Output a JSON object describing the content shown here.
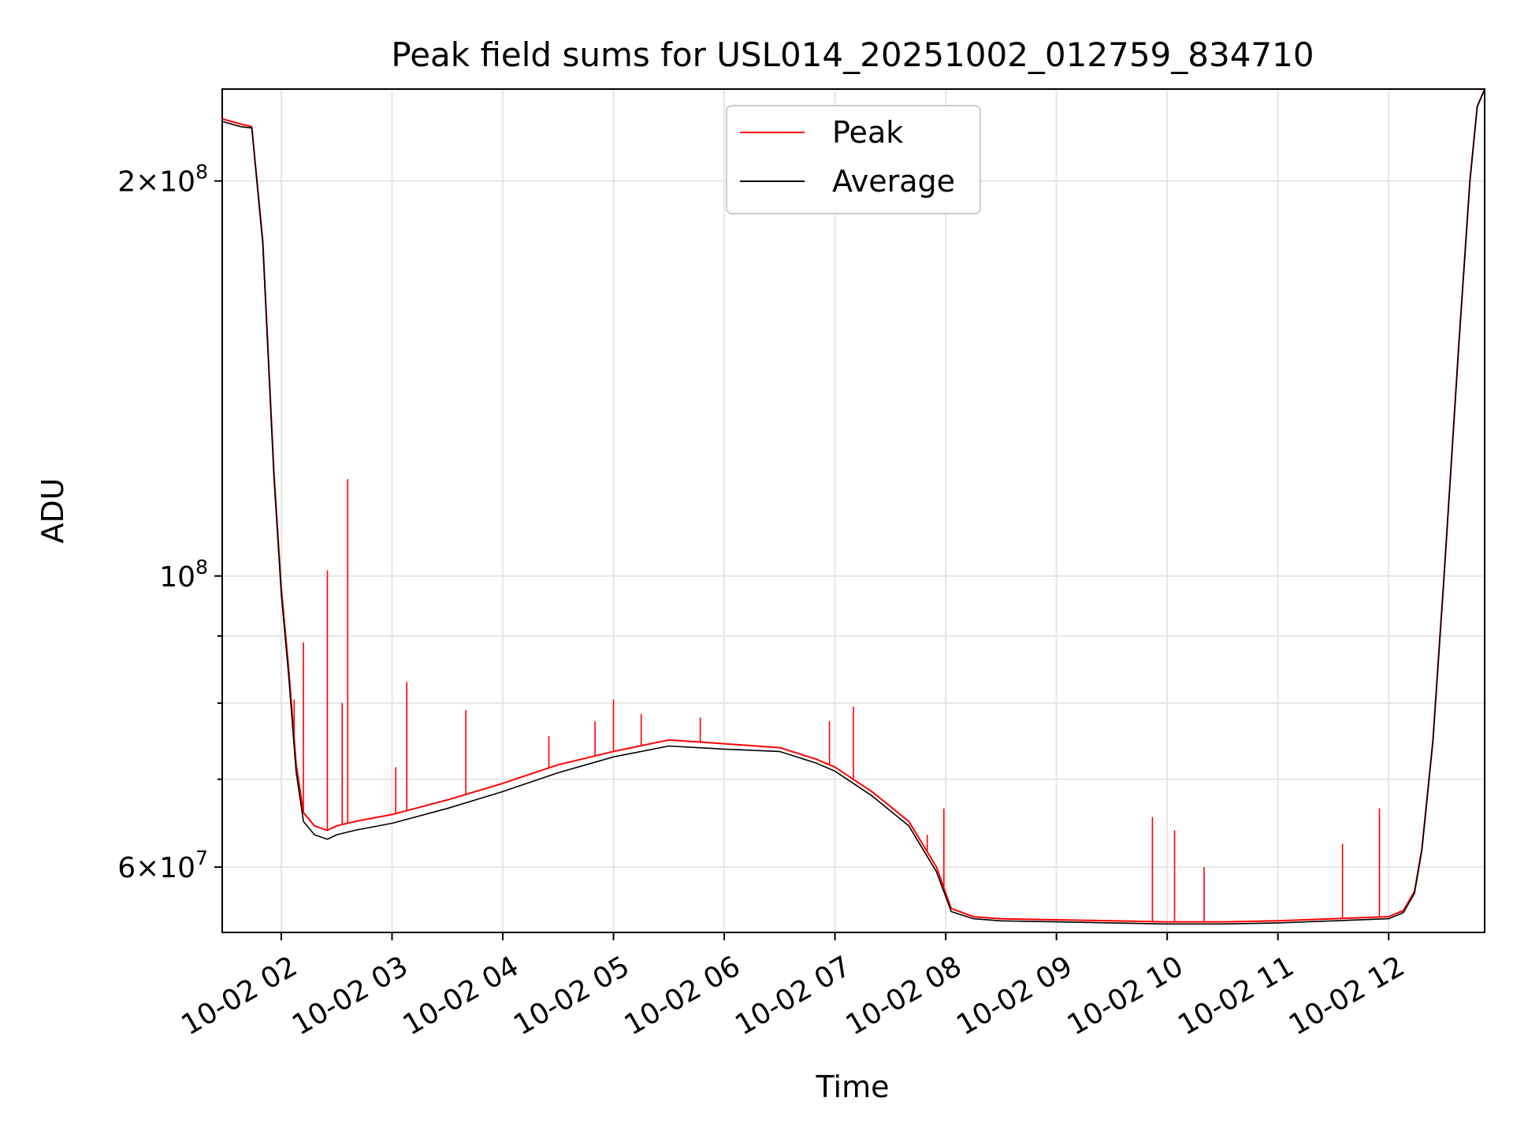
{
  "chart_data": {
    "type": "line",
    "title": "Peak field sums for USL014_20251002_012759_834710",
    "xlabel": "Time",
    "ylabel": "ADU",
    "yscale": "log",
    "xlim": [
      "2025-10-02 01:28",
      "2025-10-02 12:52"
    ],
    "ylim": [
      53500000,
      235000000
    ],
    "x_ticks": [
      {
        "value": "2025-10-02 02:00",
        "label": "10-02 02"
      },
      {
        "value": "2025-10-02 03:00",
        "label": "10-02 03"
      },
      {
        "value": "2025-10-02 04:00",
        "label": "10-02 04"
      },
      {
        "value": "2025-10-02 05:00",
        "label": "10-02 05"
      },
      {
        "value": "2025-10-02 06:00",
        "label": "10-02 06"
      },
      {
        "value": "2025-10-02 07:00",
        "label": "10-02 07"
      },
      {
        "value": "2025-10-02 08:00",
        "label": "10-02 08"
      },
      {
        "value": "2025-10-02 09:00",
        "label": "10-02 09"
      },
      {
        "value": "2025-10-02 10:00",
        "label": "10-02 10"
      },
      {
        "value": "2025-10-02 11:00",
        "label": "10-02 11"
      },
      {
        "value": "2025-10-02 12:00",
        "label": "10-02 12"
      }
    ],
    "y_major_ticks": [
      {
        "value": 60000000,
        "base": "6",
        "exp": "7"
      },
      {
        "value": 100000000,
        "base": "",
        "exp": "8"
      },
      {
        "value": 200000000,
        "base": "2",
        "exp": "8"
      }
    ],
    "y_minor_ticks": [
      70000000,
      80000000,
      90000000
    ],
    "grid": true,
    "legend": "upper center",
    "colors": {
      "peak": "#ff0000",
      "average": "#000000",
      "grid": "#e6e6e6"
    },
    "series": [
      {
        "name": "Peak",
        "color": "#ff0000",
        "x": [
          "2025-10-02 01:28",
          "2025-10-02 01:38",
          "2025-10-02 01:44",
          "2025-10-02 01:50",
          "2025-10-02 01:56",
          "2025-10-02 02:00",
          "2025-10-02 02:04",
          "2025-10-02 02:08",
          "2025-10-02 02:12",
          "2025-10-02 02:18",
          "2025-10-02 02:25",
          "2025-10-02 02:30",
          "2025-10-02 02:40",
          "2025-10-02 03:00",
          "2025-10-02 03:30",
          "2025-10-02 04:00",
          "2025-10-02 04:30",
          "2025-10-02 05:00",
          "2025-10-02 05:30",
          "2025-10-02 06:00",
          "2025-10-02 06:30",
          "2025-10-02 06:50",
          "2025-10-02 07:00",
          "2025-10-02 07:20",
          "2025-10-02 07:40",
          "2025-10-02 07:55",
          "2025-10-02 08:03",
          "2025-10-02 08:15",
          "2025-10-02 08:30",
          "2025-10-02 09:00",
          "2025-10-02 09:30",
          "2025-10-02 10:00",
          "2025-10-02 10:30",
          "2025-10-02 11:00",
          "2025-10-02 11:30",
          "2025-10-02 12:00",
          "2025-10-02 12:08",
          "2025-10-02 12:14",
          "2025-10-02 12:18",
          "2025-10-02 12:24",
          "2025-10-02 12:30",
          "2025-10-02 12:38",
          "2025-10-02 12:44",
          "2025-10-02 12:48",
          "2025-10-02 12:52"
        ],
        "values": [
          223000000,
          221000000,
          220000000,
          180000000,
          120000000,
          98000000,
          85000000,
          72000000,
          66000000,
          64500000,
          64000000,
          64500000,
          65000000,
          65800000,
          67500000,
          69500000,
          71800000,
          73500000,
          75000000,
          74500000,
          74000000,
          72500000,
          71500000,
          68500000,
          65000000,
          60000000,
          55800000,
          55000000,
          54800000,
          54700000,
          54600000,
          54500000,
          54500000,
          54600000,
          54800000,
          55000000,
          55600000,
          57500000,
          62000000,
          75000000,
          100000000,
          150000000,
          200000000,
          228000000,
          235000000
        ],
        "spikes": [
          {
            "x": "2025-10-02 02:07",
            "y": 80500000
          },
          {
            "x": "2025-10-02 02:12",
            "y": 89000000
          },
          {
            "x": "2025-10-02 02:25",
            "y": 101000000
          },
          {
            "x": "2025-10-02 02:36",
            "y": 118500000
          },
          {
            "x": "2025-10-02 02:33",
            "y": 80000000
          },
          {
            "x": "2025-10-02 03:02",
            "y": 71500000
          },
          {
            "x": "2025-10-02 03:08",
            "y": 83000000
          },
          {
            "x": "2025-10-02 03:40",
            "y": 79000000
          },
          {
            "x": "2025-10-02 04:25",
            "y": 75500000
          },
          {
            "x": "2025-10-02 04:50",
            "y": 77500000
          },
          {
            "x": "2025-10-02 05:00",
            "y": 80500000
          },
          {
            "x": "2025-10-02 05:15",
            "y": 78500000
          },
          {
            "x": "2025-10-02 05:47",
            "y": 78000000
          },
          {
            "x": "2025-10-02 06:57",
            "y": 77500000
          },
          {
            "x": "2025-10-02 07:10",
            "y": 79500000
          },
          {
            "x": "2025-10-02 07:50",
            "y": 63500000
          },
          {
            "x": "2025-10-02 07:59",
            "y": 66500000
          },
          {
            "x": "2025-10-02 09:52",
            "y": 65500000
          },
          {
            "x": "2025-10-02 10:04",
            "y": 64000000
          },
          {
            "x": "2025-10-02 10:20",
            "y": 60000000
          },
          {
            "x": "2025-10-02 11:35",
            "y": 62500000
          },
          {
            "x": "2025-10-02 11:55",
            "y": 66500000
          }
        ]
      },
      {
        "name": "Average",
        "color": "#000000",
        "x": [
          "2025-10-02 01:28",
          "2025-10-02 01:38",
          "2025-10-02 01:44",
          "2025-10-02 01:50",
          "2025-10-02 01:56",
          "2025-10-02 02:00",
          "2025-10-02 02:04",
          "2025-10-02 02:08",
          "2025-10-02 02:12",
          "2025-10-02 02:18",
          "2025-10-02 02:25",
          "2025-10-02 02:30",
          "2025-10-02 02:40",
          "2025-10-02 03:00",
          "2025-10-02 03:30",
          "2025-10-02 04:00",
          "2025-10-02 04:30",
          "2025-10-02 05:00",
          "2025-10-02 05:30",
          "2025-10-02 06:00",
          "2025-10-02 06:30",
          "2025-10-02 06:50",
          "2025-10-02 07:00",
          "2025-10-02 07:20",
          "2025-10-02 07:40",
          "2025-10-02 07:55",
          "2025-10-02 08:03",
          "2025-10-02 08:15",
          "2025-10-02 08:30",
          "2025-10-02 09:00",
          "2025-10-02 09:30",
          "2025-10-02 10:00",
          "2025-10-02 10:30",
          "2025-10-02 11:00",
          "2025-10-02 11:30",
          "2025-10-02 12:00",
          "2025-10-02 12:08",
          "2025-10-02 12:14",
          "2025-10-02 12:18",
          "2025-10-02 12:24",
          "2025-10-02 12:30",
          "2025-10-02 12:38",
          "2025-10-02 12:44",
          "2025-10-02 12:48",
          "2025-10-02 12:52"
        ],
        "values": [
          222000000,
          220000000,
          219500000,
          179000000,
          119000000,
          97000000,
          84000000,
          71000000,
          65000000,
          63500000,
          63000000,
          63500000,
          64000000,
          64800000,
          66500000,
          68500000,
          70800000,
          72800000,
          74200000,
          73800000,
          73500000,
          72000000,
          71000000,
          68000000,
          64500000,
          59500000,
          55500000,
          54800000,
          54600000,
          54500000,
          54400000,
          54300000,
          54300000,
          54400000,
          54600000,
          54800000,
          55400000,
          57300000,
          61800000,
          74800000,
          99800000,
          149800000,
          199800000,
          227800000,
          234800000
        ]
      }
    ]
  }
}
